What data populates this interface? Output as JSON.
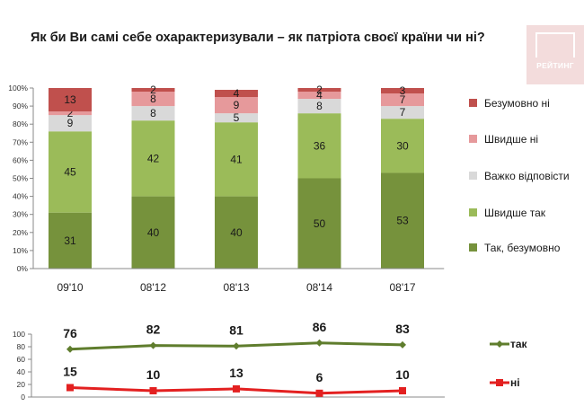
{
  "title": "Як  би Ви самі себе охарактеризували – як патріота своєї країни чи ні?",
  "logo": {
    "text": "РЕЙТИНГ"
  },
  "chart_data": [
    {
      "type": "bar",
      "stacked": true,
      "categories": [
        "09'10",
        "08'12",
        "08'13",
        "08'14",
        "08'17"
      ],
      "y_ticks": [
        "0%",
        "10%",
        "20%",
        "30%",
        "40%",
        "50%",
        "60%",
        "70%",
        "80%",
        "90%",
        "100%"
      ],
      "ylim": [
        0,
        100
      ],
      "legend_position": "right",
      "series": [
        {
          "name": "Так, безумовно",
          "color": "#76923c",
          "values": [
            31,
            40,
            40,
            50,
            53
          ]
        },
        {
          "name": "Швидше так",
          "color": "#9bbb59",
          "values": [
            45,
            42,
            41,
            36,
            30
          ]
        },
        {
          "name": "Важко відповісти",
          "color": "#d9d9d9",
          "values": [
            9,
            8,
            5,
            8,
            7
          ]
        },
        {
          "name": "Швидше ні",
          "color": "#e6999b",
          "values": [
            2,
            8,
            9,
            4,
            7
          ]
        },
        {
          "name": "Безумовно ні",
          "color": "#c0504d",
          "values": [
            13,
            2,
            4,
            2,
            3
          ]
        }
      ]
    },
    {
      "type": "line",
      "categories": [
        "09'10",
        "08'12",
        "08'13",
        "08'14",
        "08'17"
      ],
      "y_ticks": [
        "0",
        "20",
        "40",
        "60",
        "80",
        "100"
      ],
      "ylim": [
        0,
        100
      ],
      "legend_position": "right",
      "series": [
        {
          "name": "так",
          "color": "#5f7d2d",
          "marker": "diamond",
          "values": [
            76,
            82,
            81,
            86,
            83
          ]
        },
        {
          "name": "ні",
          "color": "#e32020",
          "marker": "square",
          "values": [
            15,
            10,
            13,
            6,
            10
          ]
        }
      ]
    }
  ]
}
